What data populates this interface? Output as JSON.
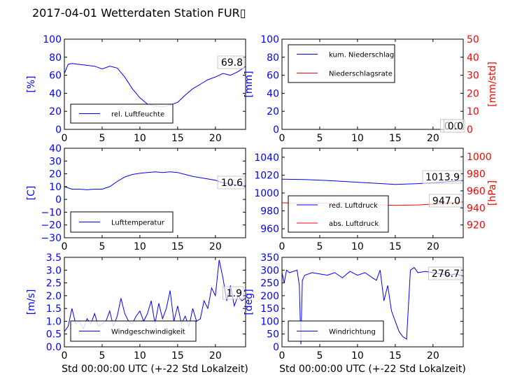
{
  "title": "2017-04-01 Wetterdaten Station FUR▯",
  "colors": {
    "left_axis": "#0000ff",
    "right_axis": "#ff0000",
    "series_blue": "#0000ff",
    "series_red": "#ff0000"
  },
  "chart_data": [
    {
      "type": "line",
      "ylabel": "[%]",
      "xlim": [
        0,
        24
      ],
      "ylim": [
        0,
        100
      ],
      "x_ticks": [
        "0",
        "5",
        "10",
        "15",
        "20"
      ],
      "y_ticks": [
        "0",
        "20",
        "40",
        "60",
        "80",
        "100"
      ],
      "legend": "lower-left",
      "annotations": [
        "69.8"
      ],
      "series": [
        {
          "name": "rel. Luftfeuchte",
          "color": "#0000ff",
          "x": [
            0,
            0.5,
            1,
            2,
            3,
            4,
            5,
            6,
            7,
            8,
            9,
            10,
            11,
            12,
            13,
            14,
            15,
            16,
            17,
            18,
            19,
            20,
            21,
            22,
            23,
            24
          ],
          "y": [
            62,
            72,
            73,
            72,
            71,
            70,
            67,
            70,
            68,
            58,
            45,
            35,
            28,
            26,
            25,
            27,
            30,
            38,
            45,
            50,
            55,
            58,
            62,
            60,
            64,
            69.8
          ]
        }
      ]
    },
    {
      "type": "line",
      "ylabel": "[mm]",
      "ylabel2": "[mm/std]",
      "xlim": [
        0,
        24
      ],
      "ylim": [
        0,
        100
      ],
      "ylim2": [
        0,
        50
      ],
      "x_ticks": [
        "0",
        "5",
        "10",
        "15",
        "20"
      ],
      "y_ticks": [
        "0",
        "20",
        "40",
        "60",
        "80",
        "100"
      ],
      "y2_ticks": [
        "0",
        "10",
        "20",
        "30",
        "40",
        "50"
      ],
      "legend": "upper-left",
      "annotations": [
        "0.0",
        "0.0"
      ],
      "series": [
        {
          "name": "kum. Niederschlag",
          "color": "#0000ff",
          "x": [
            0,
            24
          ],
          "y": [
            0,
            0
          ]
        },
        {
          "name": "Niederschlagsrate",
          "color": "#ff0000",
          "x": [
            0,
            24
          ],
          "y": [
            0,
            0
          ]
        }
      ]
    },
    {
      "type": "line",
      "ylabel": "[C]",
      "xlim": [
        0,
        24
      ],
      "ylim": [
        -30,
        40
      ],
      "x_ticks": [
        "0",
        "5",
        "10",
        "15",
        "20"
      ],
      "y_ticks": [
        "−30",
        "−20",
        "−10",
        "0",
        "10",
        "20",
        "30",
        "40"
      ],
      "legend": "lower-left",
      "annotations": [
        "10.6"
      ],
      "series": [
        {
          "name": "Lufttemperatur",
          "color": "#0000ff",
          "x": [
            0,
            1,
            2,
            3,
            4,
            5,
            6,
            7,
            8,
            9,
            10,
            11,
            12,
            13,
            14,
            15,
            16,
            17,
            18,
            19,
            20,
            21,
            22,
            23,
            24
          ],
          "y": [
            10,
            8,
            8,
            7.5,
            8,
            8,
            10,
            14,
            17.5,
            19.5,
            20.5,
            21,
            21.5,
            21,
            21.5,
            21,
            19.5,
            18,
            17,
            16,
            15,
            13,
            12,
            11,
            10.6
          ]
        }
      ]
    },
    {
      "type": "line",
      "ylabel2": "[hPa]",
      "xlim": [
        0,
        24
      ],
      "ylim": [
        950,
        1050
      ],
      "ylim2": [
        905,
        1010
      ],
      "x_ticks": [
        "0",
        "5",
        "10",
        "15",
        "20"
      ],
      "y_ticks": [
        "960",
        "980",
        "1000",
        "1020",
        "1040"
      ],
      "y2_ticks": [
        "920",
        "940",
        "960",
        "980",
        "1000"
      ],
      "legend": "lower-left",
      "annotations": [
        "1013.9",
        "947.0"
      ],
      "series": [
        {
          "name": "red. Luftdruck",
          "color": "#0000ff",
          "x": [
            0,
            3,
            6,
            9,
            12,
            15,
            18,
            21,
            24
          ],
          "y": [
            1015.5,
            1015,
            1014,
            1012.5,
            1011,
            1009.5,
            1010.5,
            1012,
            1014
          ]
        },
        {
          "name": "abs. Luftdruck",
          "color": "#ff0000",
          "axis": "right",
          "x": [
            0,
            3,
            6,
            9,
            12,
            15,
            18,
            21,
            24
          ],
          "y": [
            946,
            945.5,
            945.5,
            945,
            944,
            943,
            943.5,
            945,
            947
          ]
        }
      ]
    },
    {
      "type": "line",
      "ylabel": "[m/s]",
      "xlim": [
        0,
        24
      ],
      "ylim": [
        0,
        3.5
      ],
      "x_ticks": [
        "0",
        "5",
        "10",
        "15",
        "20"
      ],
      "y_ticks": [
        "0.0",
        "0.5",
        "1.0",
        "1.5",
        "2.0",
        "2.5",
        "3.0",
        "3.5"
      ],
      "xlabel": "Std 00:00:00 UTC (+-22 Std Lokalzeit)",
      "legend": "lower-left",
      "annotations": [
        "1.9"
      ],
      "series": [
        {
          "name": "Windgeschwindigkeit",
          "color": "#0000ff",
          "x": [
            0,
            0.5,
            1,
            1.5,
            2,
            2.5,
            3,
            3.5,
            4,
            4.5,
            5,
            5.5,
            6,
            6.5,
            7,
            7.5,
            8,
            8.5,
            9,
            9.5,
            10,
            10.5,
            11,
            11.5,
            12,
            12.5,
            13,
            13.5,
            14,
            14.5,
            15,
            15.5,
            16,
            16.5,
            17,
            17.5,
            18,
            18.5,
            19,
            19.5,
            20,
            20.5,
            21,
            21.5,
            22,
            22.5,
            23,
            23.5,
            24
          ],
          "y": [
            0.6,
            0.8,
            1.5,
            0.9,
            1.0,
            0.7,
            1.1,
            0.9,
            1.3,
            0.8,
            0.9,
            1.0,
            1.4,
            0.8,
            1.2,
            1.9,
            1.3,
            1.0,
            0.9,
            1.2,
            1.4,
            1.0,
            1.3,
            1.8,
            0.9,
            1.7,
            1.1,
            1.5,
            2.2,
            1.0,
            1.6,
            0.9,
            1.2,
            0.8,
            1.5,
            1.0,
            1.1,
            1.8,
            1.5,
            2.3,
            2.0,
            3.4,
            2.7,
            1.8,
            2.4,
            1.6,
            2.0,
            1.8,
            1.9
          ]
        }
      ]
    },
    {
      "type": "line",
      "ylabel": "[deg]",
      "xlim": [
        0,
        24
      ],
      "ylim": [
        0,
        350
      ],
      "x_ticks": [
        "0",
        "5",
        "10",
        "15",
        "20"
      ],
      "y_ticks": [
        "0",
        "50",
        "100",
        "150",
        "200",
        "250",
        "300",
        "350"
      ],
      "xlabel": "Std 00:00:00 UTC (+-22 Std Lokalzeit)",
      "legend": "lower-left",
      "annotations": [
        "276.7"
      ],
      "series": [
        {
          "name": "Windrichtung",
          "color": "#0000ff",
          "x": [
            0,
            0.3,
            0.6,
            1,
            1.5,
            2,
            2.3,
            2.5,
            2.7,
            3,
            4,
            5,
            6,
            7,
            8,
            9,
            10,
            11,
            12,
            12.5,
            13,
            13.5,
            14,
            14.5,
            15,
            15.5,
            16,
            16.5,
            17,
            17.5,
            18,
            19,
            20,
            21,
            22,
            23,
            24
          ],
          "y": [
            290,
            250,
            300,
            290,
            295,
            300,
            240,
            10,
            260,
            280,
            290,
            285,
            280,
            290,
            270,
            295,
            280,
            290,
            270,
            260,
            300,
            180,
            240,
            140,
            100,
            60,
            40,
            30,
            300,
            310,
            290,
            295,
            290,
            285,
            280,
            285,
            276.7
          ]
        }
      ]
    }
  ]
}
